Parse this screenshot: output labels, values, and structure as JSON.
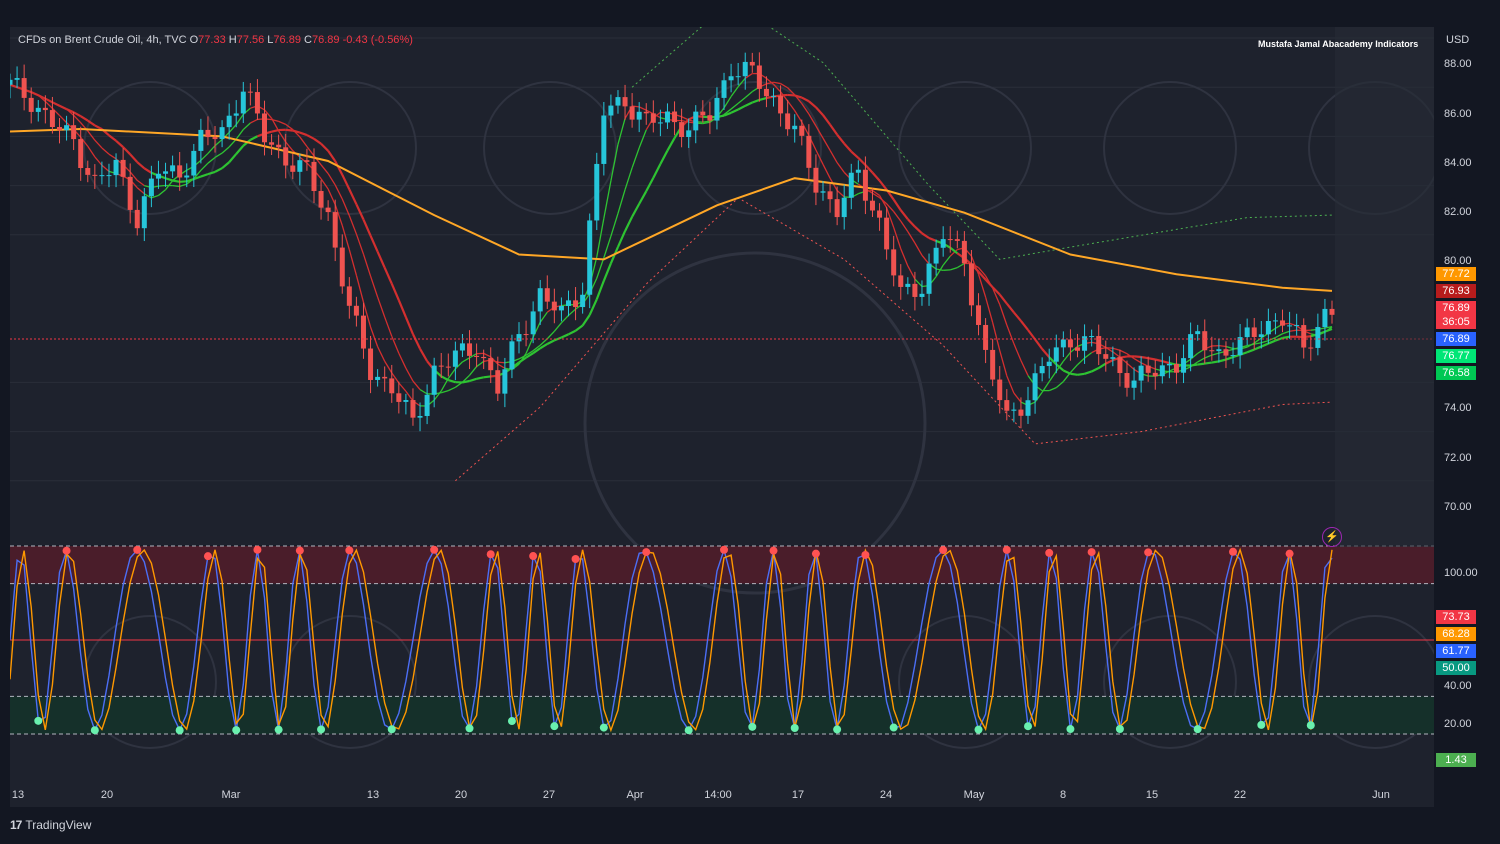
{
  "legend": {
    "symbol": "CFDs on Brent Crude Oil, 4h, TVC",
    "o_label": "O",
    "o": "77.33",
    "h_label": "H",
    "h": "77.56",
    "l_label": "L",
    "l": "76.89",
    "c_label": "C",
    "c": "76.89",
    "change": "-0.43 (-0.56%)"
  },
  "author": "Mustafa Jamal Abacademy Indicators",
  "currency": "USD",
  "price_axis": [
    "88.00",
    "86.00",
    "84.00",
    "82.00",
    "80.00",
    "74.00",
    "72.00",
    "70.00"
  ],
  "price_badges": [
    {
      "text": "77.72",
      "color": "#ff9800"
    },
    {
      "text": "76.93",
      "color": "#b71c1c"
    },
    {
      "text": "76.89",
      "color": "#f23645"
    },
    {
      "text": "36:05",
      "color": "#f23645"
    },
    {
      "text": "76.89",
      "color": "#2962ff"
    },
    {
      "text": "76.77",
      "color": "#00e676"
    },
    {
      "text": "76.58",
      "color": "#00c853"
    }
  ],
  "osc_axis": [
    "100.00",
    "40.00",
    "20.00"
  ],
  "osc_badges": [
    {
      "text": "73.73",
      "color": "#f23645"
    },
    {
      "text": "68.28",
      "color": "#ff9800"
    },
    {
      "text": "61.77",
      "color": "#2962ff"
    },
    {
      "text": "50.00",
      "color": "#089981"
    },
    {
      "text": "1.43",
      "color": "#4caf50"
    }
  ],
  "time_axis": [
    "13",
    "20",
    "Mar",
    "13",
    "20",
    "27",
    "Apr",
    "14:00",
    "17",
    "24",
    "May",
    "8",
    "15",
    "22",
    "Jun"
  ],
  "brand": "TradingView",
  "colors": {
    "up": "#26c6da",
    "down": "#ef5350",
    "ema_long": "#ffa726",
    "ema_red": "#d32f2f",
    "ema_green": "#2ec332",
    "k_line": "#4c6ef5",
    "d_line": "#ff9800"
  },
  "chart_data": {
    "type": "candlestick",
    "timeframe": "4h",
    "y_range": [
      69,
      88.8
    ],
    "x_dates": [
      "Feb 13",
      "Feb 20",
      "Mar",
      "Mar 13",
      "Mar 20",
      "Mar 27",
      "Apr",
      "Apr 14:00",
      "Apr 17",
      "Apr 24",
      "May",
      "May 8",
      "May 15",
      "May 22",
      "Jun"
    ],
    "close_path": [
      [
        0,
        86.1
      ],
      [
        3,
        85.5
      ],
      [
        6,
        84.5
      ],
      [
        9,
        83.8
      ],
      [
        12,
        82.1
      ],
      [
        15,
        82.8
      ],
      [
        18,
        80.7
      ],
      [
        21,
        82.6
      ],
      [
        24,
        82.5
      ],
      [
        27,
        83.8
      ],
      [
        30,
        84.2
      ],
      [
        33,
        86.0
      ],
      [
        36,
        84.0
      ],
      [
        39,
        83.1
      ],
      [
        42,
        82.5
      ],
      [
        45,
        80.8
      ],
      [
        48,
        77.0
      ],
      [
        51,
        74.5
      ],
      [
        54,
        73.8
      ],
      [
        57,
        72.3
      ],
      [
        60,
        74.5
      ],
      [
        63,
        75.0
      ],
      [
        66,
        75.5
      ],
      [
        69,
        73.7
      ],
      [
        72,
        76.0
      ],
      [
        75,
        77.5
      ],
      [
        78,
        76.8
      ],
      [
        81,
        77.9
      ],
      [
        84,
        85.0
      ],
      [
        87,
        85.5
      ],
      [
        90,
        84.5
      ],
      [
        93,
        84.8
      ],
      [
        96,
        84.3
      ],
      [
        99,
        84.9
      ],
      [
        102,
        86.8
      ],
      [
        105,
        86.5
      ],
      [
        108,
        85.5
      ],
      [
        111,
        84.2
      ],
      [
        114,
        82.1
      ],
      [
        117,
        81.0
      ],
      [
        120,
        82.5
      ],
      [
        123,
        80.5
      ],
      [
        126,
        77.5
      ],
      [
        129,
        78.0
      ],
      [
        132,
        80.0
      ],
      [
        135,
        79.0
      ],
      [
        138,
        75.0
      ],
      [
        141,
        72.5
      ],
      [
        144,
        73.5
      ],
      [
        147,
        75.0
      ],
      [
        150,
        75.8
      ],
      [
        153,
        75.5
      ],
      [
        156,
        74.8
      ],
      [
        159,
        74.0
      ],
      [
        162,
        74.5
      ],
      [
        165,
        74.8
      ],
      [
        168,
        75.8
      ],
      [
        171,
        75.2
      ],
      [
        174,
        75.5
      ],
      [
        177,
        76.3
      ],
      [
        180,
        76.6
      ],
      [
        183,
        75.4
      ],
      [
        186,
        76.8
      ],
      [
        187,
        76.9
      ]
    ],
    "ema_long": [
      [
        0,
        84.2
      ],
      [
        10,
        84.3
      ],
      [
        30,
        84.0
      ],
      [
        45,
        83.0
      ],
      [
        60,
        80.8
      ],
      [
        72,
        79.2
      ],
      [
        84,
        79.0
      ],
      [
        100,
        81.2
      ],
      [
        111,
        82.3
      ],
      [
        124,
        81.8
      ],
      [
        135,
        80.9
      ],
      [
        150,
        79.2
      ],
      [
        165,
        78.4
      ],
      [
        180,
        77.85
      ],
      [
        187,
        77.72
      ]
    ],
    "upper_band": [
      [
        88,
        86.0
      ],
      [
        102,
        89.5
      ],
      [
        115,
        87.0
      ],
      [
        130,
        82.0
      ],
      [
        140,
        79.0
      ],
      [
        150,
        79.5
      ],
      [
        175,
        80.7
      ],
      [
        187,
        80.8
      ]
    ],
    "lower_band": [
      [
        63,
        70.0
      ],
      [
        75,
        73.0
      ],
      [
        90,
        78.0
      ],
      [
        103,
        81.5
      ],
      [
        118,
        79.0
      ],
      [
        132,
        75.5
      ],
      [
        145,
        71.5
      ],
      [
        160,
        72.0
      ],
      [
        180,
        73.1
      ],
      [
        187,
        73.2
      ]
    ],
    "oscillator": {
      "levels": [
        0,
        20,
        50,
        80,
        100
      ],
      "k": 61.77,
      "d": 68.28,
      "other": [
        73.73,
        1.43
      ]
    }
  }
}
